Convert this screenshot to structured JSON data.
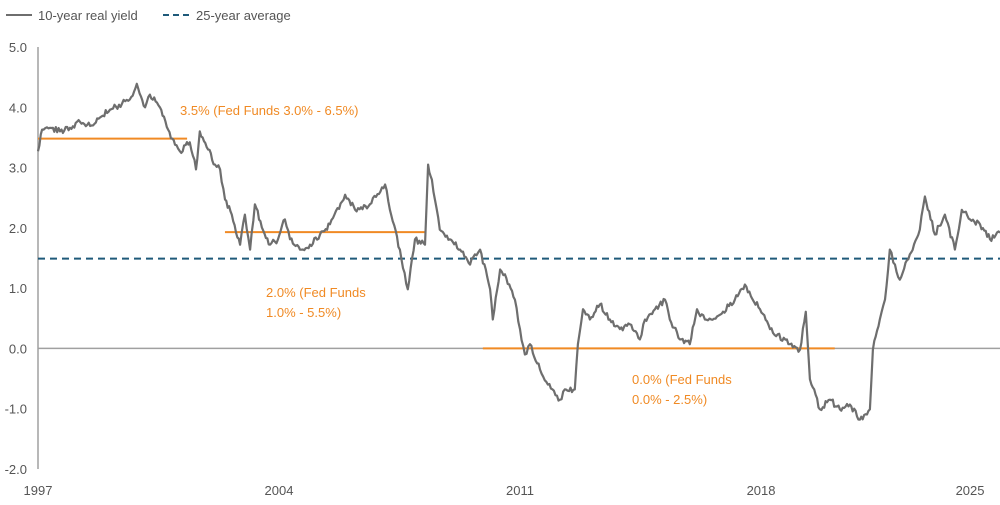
{
  "chart_data": {
    "type": "line",
    "title": "",
    "xlabel": "",
    "ylabel": "",
    "ylim": [
      -2.0,
      5.0
    ],
    "xlim": [
      1997,
      2024.94
    ],
    "grid": false,
    "legend_position": "top-left",
    "yticks": [
      "5.0",
      "4.0",
      "3.0",
      "2.0",
      "1.0",
      "0.0",
      "-1.0",
      "-2.0"
    ],
    "ytick_values": [
      5,
      4,
      3,
      2,
      1,
      0,
      -1,
      -2
    ],
    "xticks": [
      {
        "label": "1997",
        "x": 1997
      },
      {
        "label": "2004",
        "x": 2004
      },
      {
        "label": "2011",
        "x": 2011
      },
      {
        "label": "2018",
        "x": 2018
      },
      {
        "label": "2025",
        "x": 2024.07
      }
    ],
    "legend": [
      {
        "label": "10-year real yield",
        "color": "#6e6e6e",
        "style": "solid"
      },
      {
        "label": "25-year average",
        "color": "#1f5a7a",
        "style": "dashed"
      }
    ],
    "series": [
      {
        "name": "10-year real yield",
        "color": "#6e6e6e",
        "x": [
          1997.0,
          1997.12,
          1997.35,
          1997.64,
          1997.93,
          1998.22,
          1998.6,
          1998.8,
          1999.09,
          1999.44,
          1999.67,
          1999.87,
          2000.11,
          2000.25,
          2000.54,
          2000.78,
          2000.98,
          2001.12,
          2001.41,
          2001.59,
          2001.7,
          2001.94,
          2002.14,
          2002.29,
          2002.43,
          2002.63,
          2002.87,
          2003.01,
          2003.16,
          2003.3,
          2003.5,
          2003.74,
          2003.97,
          2004.17,
          2004.32,
          2004.61,
          2004.9,
          2005.19,
          2005.48,
          2005.92,
          2006.21,
          2006.64,
          2007.08,
          2007.22,
          2007.51,
          2007.74,
          2007.95,
          2008.24,
          2008.33,
          2008.44,
          2008.67,
          2008.96,
          2009.26,
          2009.55,
          2009.69,
          2009.84,
          2010.13,
          2010.21,
          2010.42,
          2010.56,
          2010.85,
          2011.0,
          2011.14,
          2011.29,
          2011.58,
          2011.81,
          2012.16,
          2012.3,
          2012.59,
          2012.68,
          2012.83,
          2013.03,
          2013.32,
          2013.61,
          2013.9,
          2014.19,
          2014.48,
          2014.63,
          2014.92,
          2015.21,
          2015.35,
          2015.64,
          2015.93,
          2016.14,
          2016.37,
          2016.81,
          2017.24,
          2017.53,
          2017.97,
          2018.26,
          2018.84,
          2019.13,
          2019.3,
          2019.42,
          2019.71,
          2020.0,
          2020.29,
          2020.58,
          2020.87,
          2021.16,
          2021.25,
          2021.45,
          2021.6,
          2021.74,
          2021.89,
          2022.03,
          2022.32,
          2022.61,
          2022.76,
          2023.05,
          2023.34,
          2023.63,
          2023.83,
          2024.07,
          2024.36,
          2024.65,
          2024.94
        ],
        "y": [
          3.27,
          3.63,
          3.66,
          3.6,
          3.66,
          3.76,
          3.7,
          3.83,
          3.96,
          4.06,
          4.13,
          4.39,
          4.0,
          4.21,
          4.0,
          3.63,
          3.38,
          3.27,
          3.42,
          2.97,
          3.6,
          3.3,
          3.05,
          2.97,
          2.47,
          2.22,
          1.72,
          2.22,
          1.64,
          2.39,
          2.01,
          1.72,
          1.81,
          2.14,
          1.81,
          1.64,
          1.72,
          1.89,
          2.06,
          2.55,
          2.3,
          2.39,
          2.72,
          2.3,
          1.64,
          0.98,
          1.81,
          1.72,
          3.05,
          2.8,
          1.97,
          1.81,
          1.64,
          1.39,
          1.56,
          1.64,
          0.98,
          0.48,
          1.31,
          1.23,
          0.81,
          0.32,
          -0.1,
          0.07,
          -0.35,
          -0.6,
          -0.85,
          -0.68,
          -0.68,
          0.07,
          0.65,
          0.48,
          0.73,
          0.48,
          0.32,
          0.4,
          0.15,
          0.48,
          0.65,
          0.81,
          0.48,
          0.15,
          0.07,
          0.65,
          0.48,
          0.56,
          0.81,
          1.06,
          0.65,
          0.32,
          0.07,
          -0.02,
          0.61,
          -0.51,
          -1.01,
          -0.85,
          -1.01,
          -0.93,
          -1.18,
          -1.01,
          -0.02,
          0.48,
          0.81,
          1.64,
          1.39,
          1.14,
          1.56,
          1.97,
          2.52,
          1.89,
          2.22,
          1.64,
          2.3,
          2.14,
          2.06,
          1.81,
          1.92
        ]
      }
    ],
    "average_line": {
      "label": "25-year average",
      "value": 1.49,
      "color": "#1f5a7a"
    },
    "regime_lines": [
      {
        "value": 3.48,
        "x_start": 1997.0,
        "x_end": 2001.33,
        "color": "#f08a24",
        "label_lines": [
          "3.5% (Fed Funds 3.0% - 6.5%)"
        ]
      },
      {
        "value": 1.93,
        "x_start": 2002.43,
        "x_end": 2008.24,
        "color": "#f08a24",
        "label_lines": [
          "2.0% (Fed Funds",
          "1.0% - 5.5%)"
        ]
      },
      {
        "value": 0.0,
        "x_start": 2009.92,
        "x_end": 2020.14,
        "color": "#f08a24",
        "label_lines": [
          "0.0% (Fed Funds",
          "0.0% - 2.5%)"
        ]
      }
    ]
  }
}
